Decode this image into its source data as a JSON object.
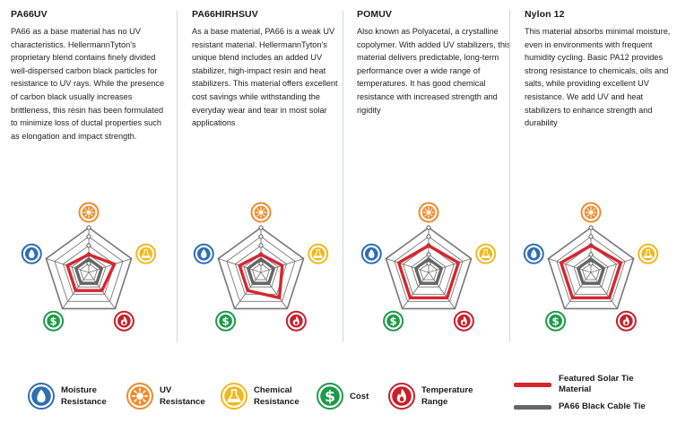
{
  "columns": [
    {
      "title": "PA66UV",
      "text": "PA66 as a base material has no UV characteristics. HellermannTyton's proprietary blend contains finely divided well-dispersed carbon black particles for resistance to UV rays. While the presence of carbon black usually increases brittleness, this resin has been formulated to minimize loss of ductal properties such as elongation and impact strength.",
      "featured": [
        2,
        3,
        2.5,
        2.5,
        2.5
      ],
      "black": [
        1.5,
        1.5,
        1.5,
        1.5,
        1.5
      ]
    },
    {
      "title": "PA66HIRHSUV",
      "text": "As a base material, PA66 is a weak UV resistant material. HellermannTyton's unique blend includes an added UV stabilizer, high-impact resin and heat stabilizers. This material offers excellent cost savings while withstanding the everyday wear and tear in most solar applications",
      "featured": [
        2,
        2.5,
        3.5,
        2.5,
        2.5
      ],
      "black": [
        1.5,
        1.5,
        1.5,
        1.5,
        1.5
      ]
    },
    {
      "title": "POMUV",
      "text": "Also known as Polyacetal, a crystalline copolymer. With added UV stabilizers, this material delivers predictable, long-term performance over a wide range of temperatures. It has good chemical resistance with increased strength and rigidity",
      "featured": [
        3,
        3.5,
        3.5,
        3.5,
        3.5
      ],
      "black": [
        1.5,
        1.5,
        1.5,
        1.5,
        1.5
      ]
    },
    {
      "title": "Nylon 12",
      "text": "This material absorbs minimal moisture, even in environments with frequent humidity cycling. Basic PA12 provides strong resistance to chemicals, oils and salts, while providing excellent UV resistance. We add UV and heat stabilizers to enhance strength and durability",
      "featured": [
        3,
        3.5,
        3.5,
        3.5,
        3.5
      ],
      "black": [
        1.5,
        1.5,
        1.5,
        1.5,
        1.5
      ]
    }
  ],
  "scale_max": 5,
  "axis_order": [
    "uv-resistance",
    "chemical-resistance",
    "temperature-range",
    "cost",
    "moisture-resistance"
  ],
  "legend": {
    "moisture": "Moisture Resistance",
    "uv": "UV Resistance",
    "chemical": "Chemical Resistance",
    "cost": "Cost",
    "temperature": "Temperature Range",
    "featured": "Featured Solar Tie Material",
    "black": "PA66 Black Cable Tie"
  },
  "legend_lines": {
    "moisture": [
      "Moisture",
      "Resistance"
    ],
    "uv": [
      "UV",
      "Resistance"
    ],
    "chemical": [
      "Chemical",
      "Resistance"
    ],
    "cost": [
      "Cost"
    ],
    "temperature": [
      "Temperature",
      "Range"
    ],
    "featured": [
      "Featured Solar Tie",
      "Material"
    ],
    "black": [
      "PA66 Black Cable Tie"
    ]
  },
  "colors": {
    "moisture": "#2f6db5",
    "uv": "#f08a2c",
    "chemical": "#f2b81e",
    "cost": "#1e9a4a",
    "temperature": "#c8202a",
    "featured": "#d7262e",
    "black": "#666666",
    "grid": "#777777"
  },
  "icons": {
    "moisture": "droplet-icon",
    "uv": "sun-icon",
    "chemical": "flask-icon",
    "cost": "dollar-icon",
    "temperature": "flame-icon"
  }
}
